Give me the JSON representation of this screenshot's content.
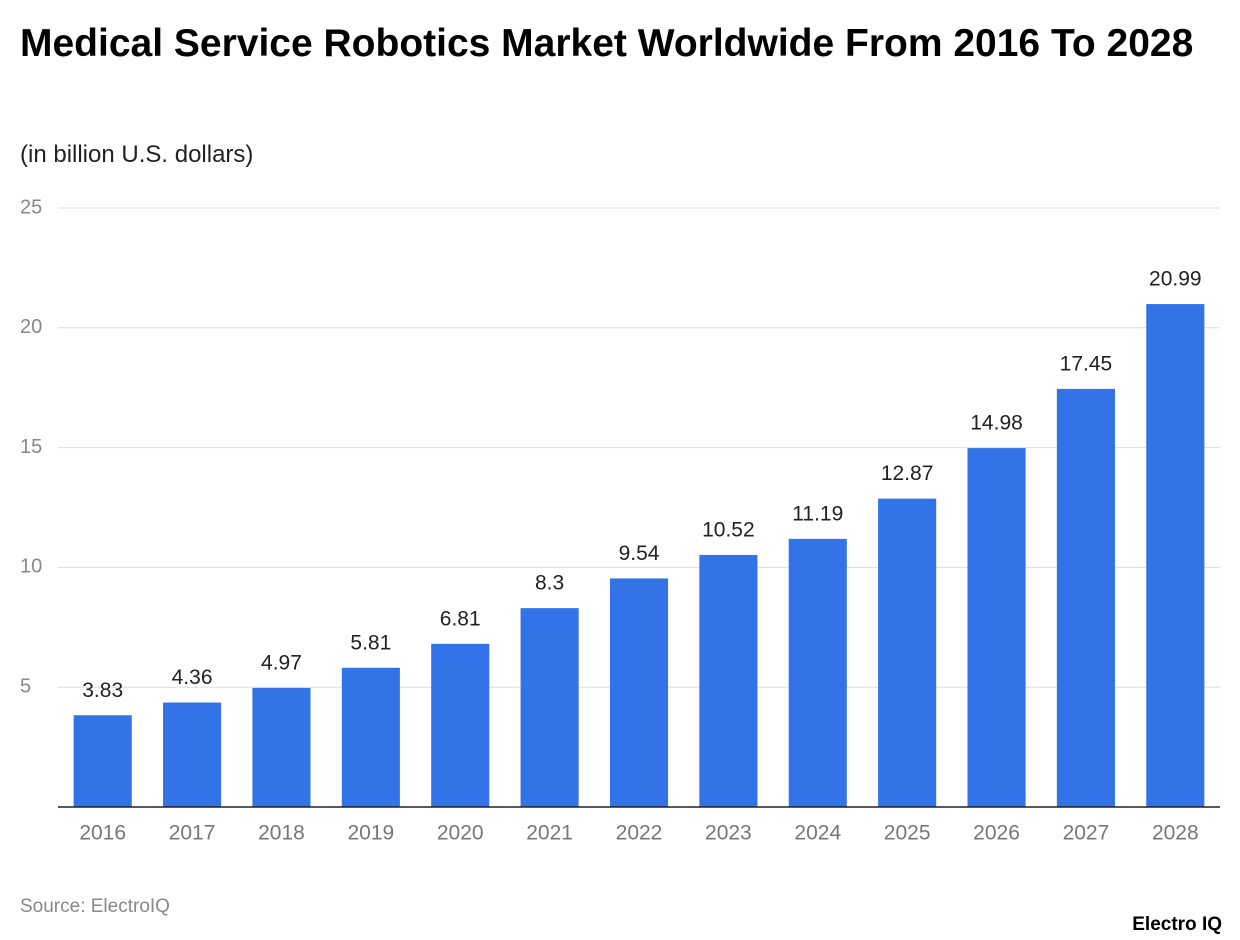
{
  "chart_data": {
    "type": "bar",
    "title": "Medical Service Robotics Market Worldwide From 2016 To 2028",
    "subtitle": "(in billion U.S. dollars)",
    "categories": [
      "2016",
      "2017",
      "2018",
      "2019",
      "2020",
      "2021",
      "2022",
      "2023",
      "2024",
      "2025",
      "2026",
      "2027",
      "2028"
    ],
    "values": [
      3.83,
      4.36,
      4.97,
      5.81,
      6.81,
      8.3,
      9.54,
      10.52,
      11.19,
      12.87,
      14.98,
      17.45,
      20.99
    ],
    "color": "#3273e8",
    "ylim": [
      0,
      25
    ],
    "yticks": [
      5,
      10,
      15,
      20,
      25
    ],
    "grid": true,
    "source": "Source: ElectroIQ",
    "brand": "Electro IQ"
  }
}
